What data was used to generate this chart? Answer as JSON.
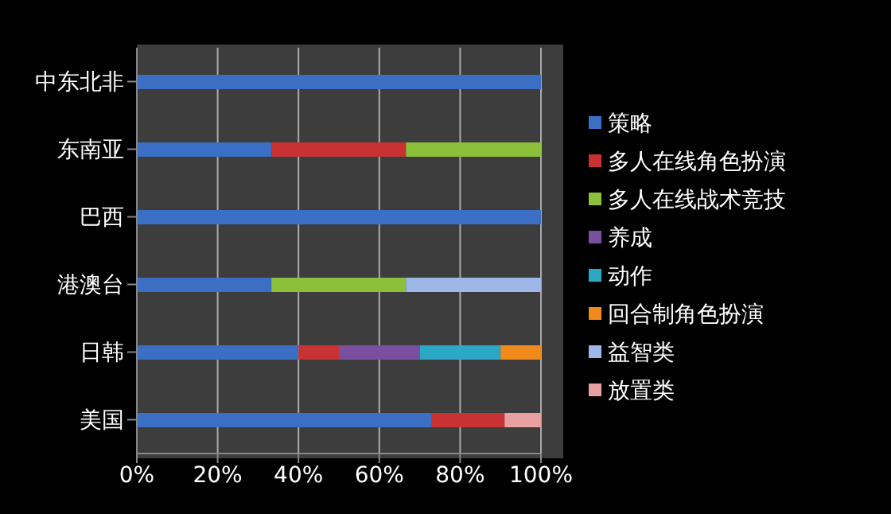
{
  "chart_data": {
    "type": "bar",
    "orientation": "horizontal",
    "stacked": true,
    "categories": [
      "中东北非",
      "东南亚",
      "巴西",
      "港澳台",
      "日韩",
      "美国"
    ],
    "series": [
      {
        "name": "策略",
        "color": "#3a6fc4",
        "values": [
          100,
          33.3,
          100,
          33.3,
          40,
          73
        ]
      },
      {
        "name": "多人在线角色扮演",
        "color": "#c83232",
        "values": [
          null,
          33.3,
          null,
          null,
          10,
          18
        ]
      },
      {
        "name": "多人在线战术竞技",
        "color": "#8cbf3a",
        "values": [
          null,
          33.4,
          null,
          33.3,
          null,
          null
        ]
      },
      {
        "name": "养成",
        "color": "#7a4fa0",
        "values": [
          null,
          null,
          null,
          null,
          20,
          null
        ]
      },
      {
        "name": "动作",
        "color": "#2aa8c4",
        "values": [
          null,
          null,
          null,
          null,
          20,
          null
        ]
      },
      {
        "name": "回合制角色扮演",
        "color": "#f08a1a",
        "values": [
          null,
          null,
          null,
          null,
          10,
          null
        ]
      },
      {
        "name": "益智类",
        "color": "#9db8e8",
        "values": [
          null,
          null,
          null,
          33.4,
          null,
          null
        ]
      },
      {
        "name": "放置类",
        "color": "#e8a0a0",
        "values": [
          null,
          null,
          null,
          null,
          null,
          9
        ]
      }
    ],
    "xlim": [
      0,
      100
    ],
    "xticks": [
      {
        "value": 0,
        "label": "0%"
      },
      {
        "value": 20,
        "label": "20%"
      },
      {
        "value": 40,
        "label": "40%"
      },
      {
        "value": 60,
        "label": "60%"
      },
      {
        "value": 80,
        "label": "80%"
      },
      {
        "value": 100,
        "label": "100%"
      }
    ],
    "grid": "x",
    "legend": "right"
  }
}
